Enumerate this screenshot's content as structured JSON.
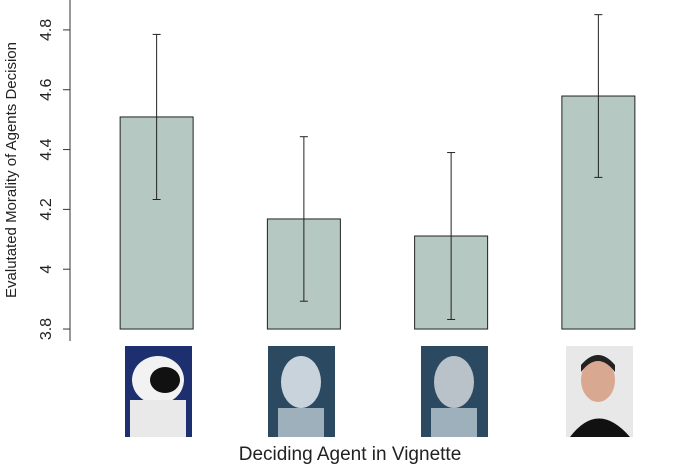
{
  "chart_data": {
    "type": "bar",
    "categories": [
      null,
      null,
      null,
      null
    ],
    "values": [
      4.509,
      4.168,
      4.111,
      4.579
    ],
    "errors": [
      0.276,
      0.275,
      0.279,
      0.272
    ],
    "color": "#b5c8c1",
    "ylim": [
      3.76,
      4.9
    ],
    "yticks": [
      3.8,
      4,
      4.2,
      4.4,
      4.6,
      4.8
    ],
    "y_label": "Evalutated Morality of Agents Decision",
    "x_label": "Deciding Agent in Vignette"
  }
}
